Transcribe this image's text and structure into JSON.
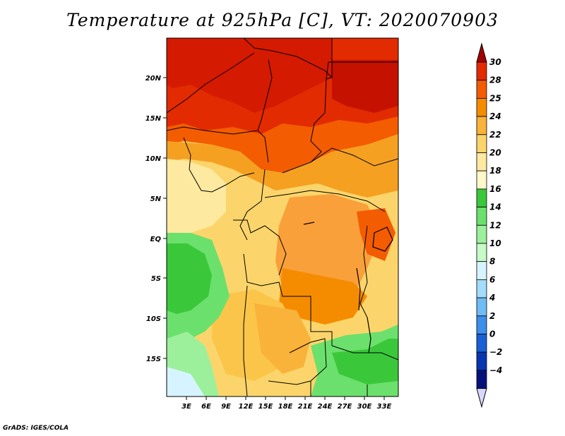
{
  "title": "Temperature at 925hPa [C], VT: 2020070903",
  "credit": "GrADS: IGES/COLA",
  "map": {
    "lat_ticks": [
      "20N",
      "15N",
      "10N",
      "5N",
      "EQ",
      "5S",
      "10S",
      "15S"
    ],
    "lon_ticks": [
      "3E",
      "6E",
      "9E",
      "12E",
      "15E",
      "18E",
      "21E",
      "24E",
      "27E",
      "30E",
      "33E"
    ]
  },
  "colorbar": {
    "labels": [
      "30",
      "28",
      "25",
      "24",
      "22",
      "20",
      "18",
      "16",
      "14",
      "12",
      "10",
      "8",
      "6",
      "4",
      "2",
      "0",
      "−2",
      "−4"
    ],
    "colors": [
      "#a50000",
      "#e22b00",
      "#f35c00",
      "#f58c00",
      "#f9b23a",
      "#fbd56b",
      "#fde9a0",
      "#fff8c8",
      "#3ac83a",
      "#6ce06c",
      "#9cf09c",
      "#c6fac6",
      "#d6f4ff",
      "#a4dcfb",
      "#6fbcf5",
      "#3b8fea",
      "#1860d6",
      "#0836b0",
      "#04127a",
      "#d8d8ff"
    ]
  }
}
